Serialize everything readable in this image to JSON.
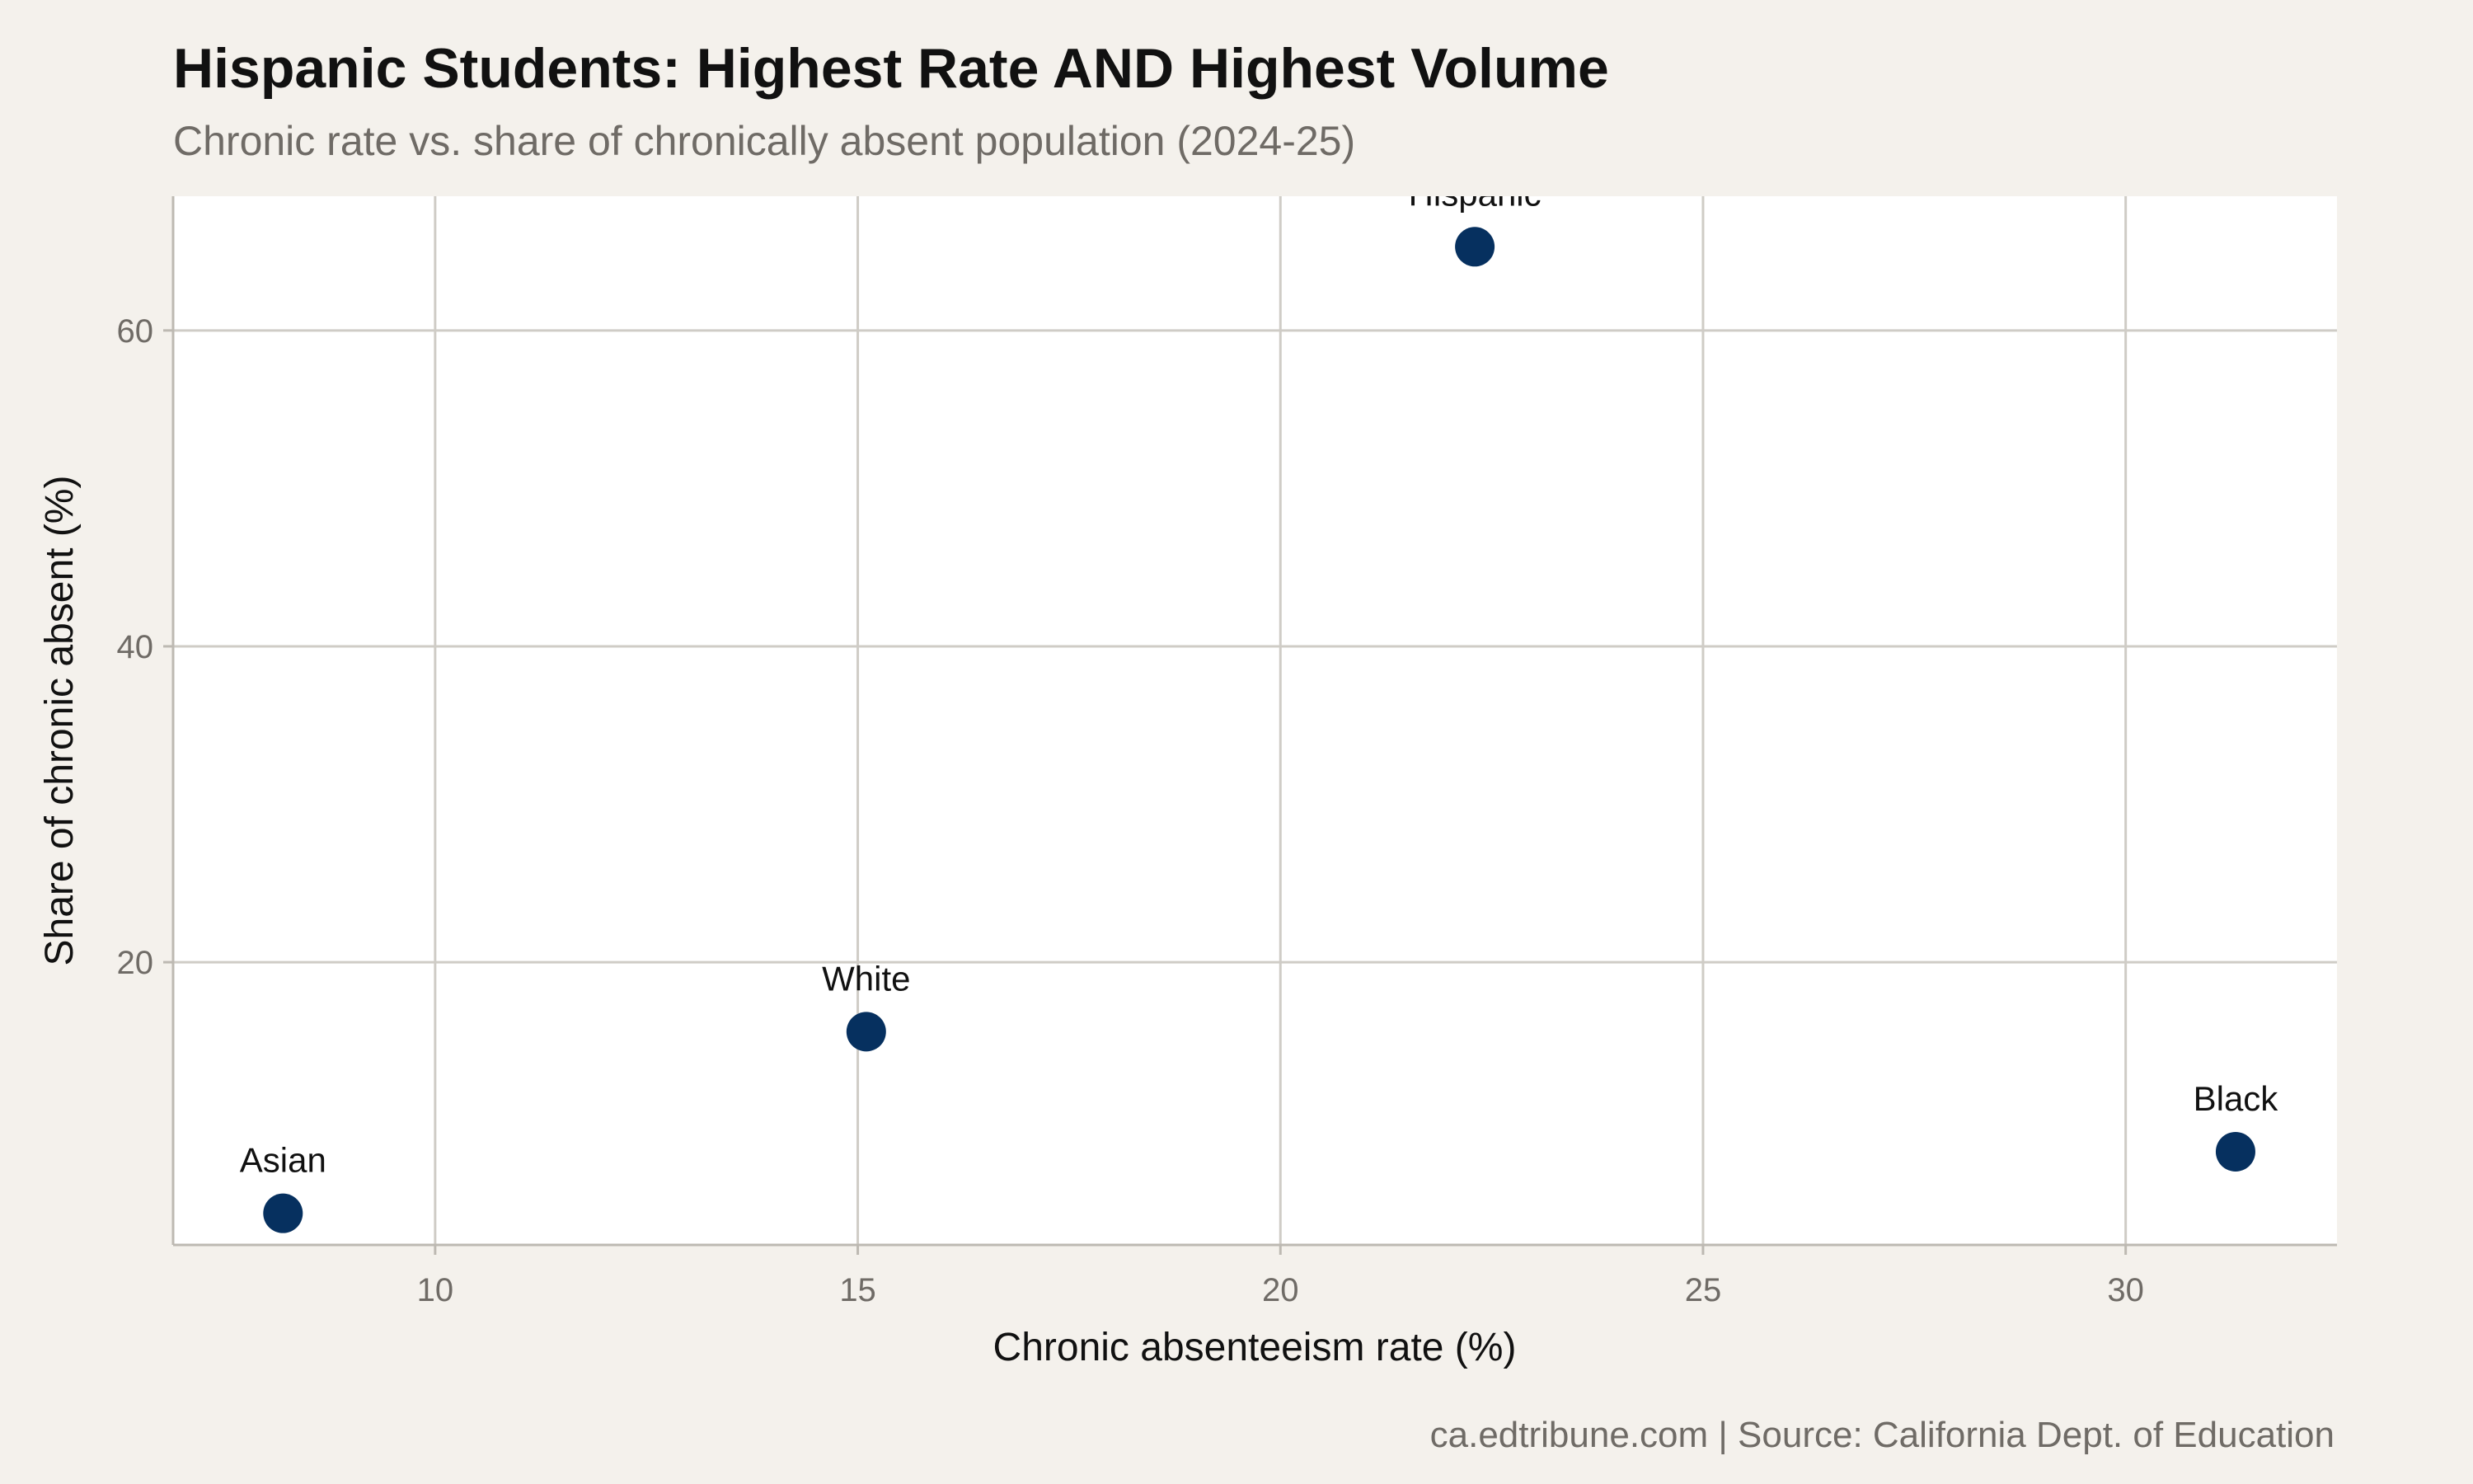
{
  "chart_data": {
    "type": "scatter",
    "title": "Hispanic Students: Highest Rate AND Highest Volume",
    "subtitle": "Chronic rate vs. share of chronically absent population (2024-25)",
    "xlabel": "Chronic absenteeism rate (%)",
    "ylabel": "Share of chronic absent (%)",
    "caption": "ca.edtribune.com | Source: California Dept. of Education",
    "xlim": [
      6.9,
      32.5
    ],
    "ylim": [
      2.1,
      68.5
    ],
    "xticks": [
      10,
      15,
      20,
      25,
      30
    ],
    "yticks": [
      20,
      40,
      60
    ],
    "grid": true,
    "point_color": "#06305f",
    "points": [
      {
        "label": "Asian",
        "x": 8.2,
        "y": 4.1
      },
      {
        "label": "White",
        "x": 15.1,
        "y": 15.6
      },
      {
        "label": "Hispanic",
        "x": 22.3,
        "y": 65.3
      },
      {
        "label": "Black",
        "x": 31.3,
        "y": 8.0
      }
    ]
  }
}
